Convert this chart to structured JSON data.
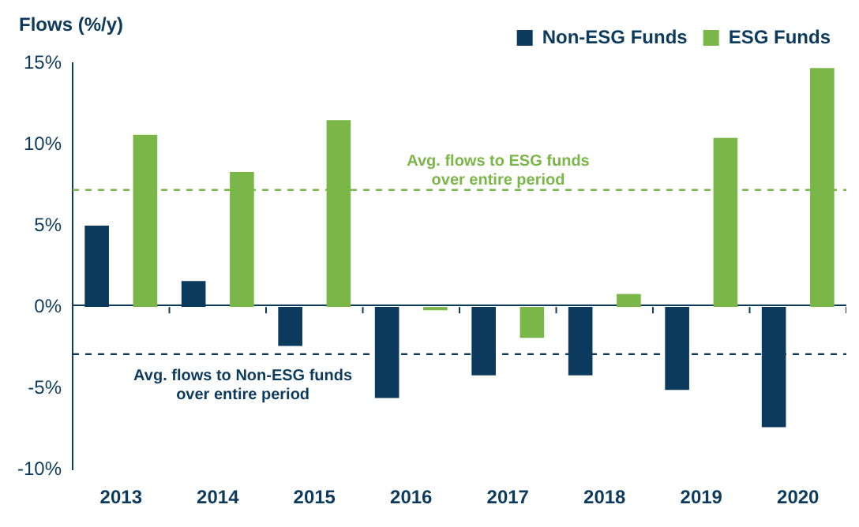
{
  "chart_data": {
    "type": "bar",
    "ylabel": "Flows (%/y)",
    "categories": [
      "2013",
      "2014",
      "2015",
      "2016",
      "2017",
      "2018",
      "2019",
      "2020"
    ],
    "series": [
      {
        "name": "Non-ESG Funds",
        "color": "#0c3a5c",
        "values": [
          5.0,
          1.6,
          -2.4,
          -5.6,
          -4.2,
          -4.2,
          -5.1,
          -7.4
        ]
      },
      {
        "name": "ESG Funds",
        "color": "#7ab648",
        "values": [
          10.6,
          8.3,
          11.5,
          -0.2,
          -1.9,
          0.8,
          10.4,
          14.7
        ]
      }
    ],
    "ylim": [
      -10,
      15
    ],
    "yticks": [
      {
        "value": -10,
        "label": "-10%"
      },
      {
        "value": -5,
        "label": "-5%"
      },
      {
        "value": 0,
        "label": "0%"
      },
      {
        "value": 5,
        "label": "5%"
      },
      {
        "value": 10,
        "label": "10%"
      },
      {
        "value": 15,
        "label": "15%"
      }
    ],
    "ref_lines": [
      {
        "axis": "y",
        "value": 7.2,
        "label": "Avg. flows to ESG funds\nover entire period",
        "color": "#7ab648",
        "line_style": "dashed"
      },
      {
        "axis": "y",
        "value": -2.9,
        "label": "Avg. flows to Non-ESG funds\nover entire period",
        "color": "#0c3a5c",
        "line_style": "dashed"
      }
    ],
    "legend": "top right"
  }
}
